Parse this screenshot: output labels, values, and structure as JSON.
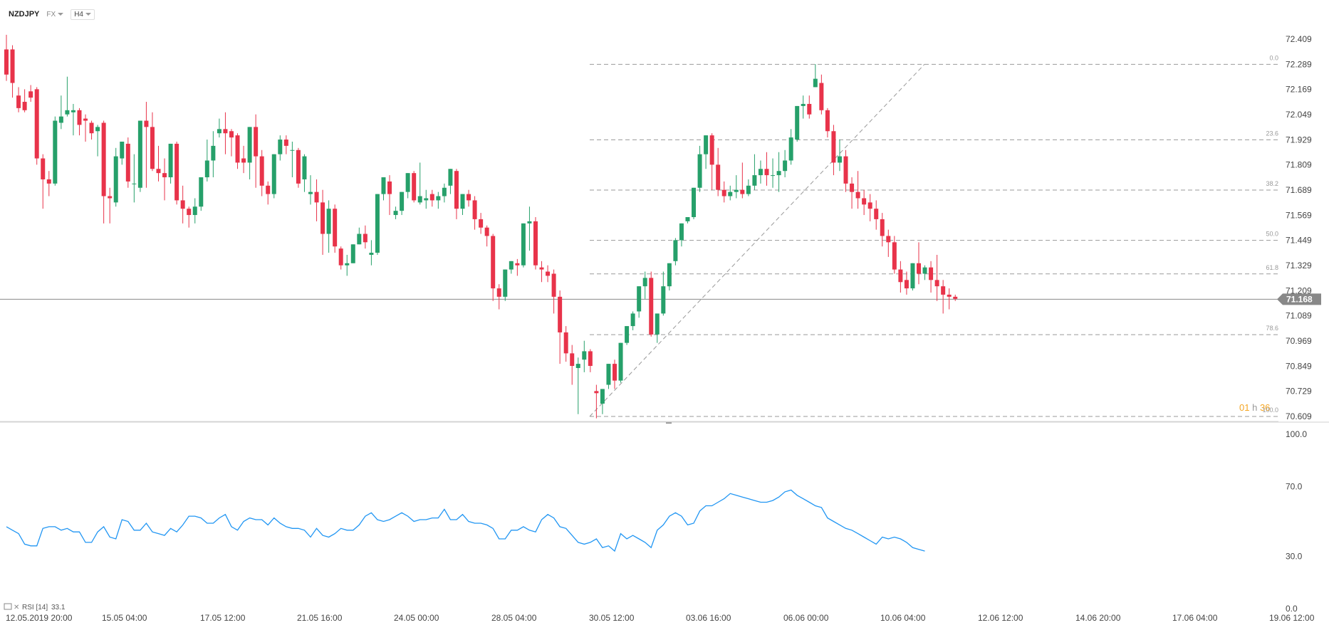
{
  "header": {
    "symbol": "NZDJPY",
    "market": "FX",
    "interval": "H4"
  },
  "price_axis": {
    "ticks": [
      "72.409",
      "72.289",
      "72.169",
      "72.049",
      "71.929",
      "71.809",
      "71.689",
      "71.569",
      "71.449",
      "71.329",
      "71.209",
      "71.089",
      "70.969",
      "70.849",
      "70.729",
      "70.609"
    ]
  },
  "current_price": {
    "label": "71.168",
    "value": 71.168
  },
  "countdown": {
    "hours": "01",
    "h": "h",
    "minutes": "36"
  },
  "fib": {
    "levels": [
      {
        "label": "0.0",
        "price": 72.289
      },
      {
        "label": "23.6",
        "price": 71.929
      },
      {
        "label": "38.2",
        "price": 71.689
      },
      {
        "label": "50.0",
        "price": 71.449
      },
      {
        "label": "61.8",
        "price": 71.289
      },
      {
        "label": "78.6",
        "price": 70.999
      },
      {
        "label": "100.0",
        "price": 70.609
      }
    ]
  },
  "rsi_panel": {
    "label": "RSI [14]",
    "value": "33.1",
    "axis_ticks": [
      "100.0",
      "70.0",
      "30.0",
      "0.0"
    ]
  },
  "time_axis": {
    "labels": [
      "12.05.2019  20:00",
      "15.05  04:00",
      "17.05  12:00",
      "21.05  16:00",
      "24.05  00:00",
      "28.05  04:00",
      "30.05  12:00",
      "03.06  16:00",
      "06.06  00:00",
      "10.06  04:00",
      "12.06  12:00",
      "14.06  20:00",
      "17.06  04:00",
      "19.06  12:00"
    ]
  },
  "colors": {
    "up": "#26a06a",
    "down": "#e8334a",
    "rsi": "#2196f3",
    "grid_dash": "#999999",
    "price_tag": "#888888",
    "countdown": "#f5a623"
  },
  "chart_data": {
    "type": "candlestick",
    "title": "NZDJPY",
    "interval": "H4",
    "ylim": [
      70.609,
      72.409
    ],
    "candles": [
      [
        72.36,
        72.43,
        72.24,
        72.21
      ],
      [
        72.36,
        72.38,
        72.2,
        72.13
      ],
      [
        72.14,
        72.18,
        72.08,
        72.06
      ],
      [
        72.11,
        72.17,
        72.07,
        72.06
      ],
      [
        72.16,
        72.19,
        72.13,
        72.11
      ],
      [
        72.17,
        72.18,
        71.84,
        71.81
      ],
      [
        71.84,
        71.86,
        71.74,
        71.6
      ],
      [
        71.74,
        71.78,
        71.72,
        71.66
      ],
      [
        71.72,
        72.04,
        72.02,
        71.71
      ],
      [
        72.01,
        72.14,
        72.04,
        71.98
      ],
      [
        72.05,
        72.23,
        72.07,
        72.04
      ],
      [
        72.06,
        72.1,
        72.07,
        71.95
      ],
      [
        72.07,
        72.08,
        72.0,
        71.95
      ],
      [
        72.03,
        72.05,
        72.02,
        71.92
      ],
      [
        72.01,
        72.02,
        71.96,
        71.93
      ],
      [
        71.97,
        72.0,
        71.99,
        71.85
      ],
      [
        72.01,
        72.02,
        71.66,
        71.53
      ],
      [
        71.66,
        71.7,
        71.65,
        71.53
      ],
      [
        71.63,
        71.89,
        71.85,
        71.61
      ],
      [
        71.84,
        71.92,
        71.92,
        71.81
      ],
      [
        71.91,
        71.94,
        71.73,
        71.7
      ],
      [
        71.72,
        71.86,
        71.72,
        71.63
      ],
      [
        71.7,
        71.91,
        72.02,
        71.68
      ],
      [
        72.02,
        72.11,
        71.99,
        71.7
      ],
      [
        71.99,
        72.06,
        71.79,
        71.78
      ],
      [
        71.79,
        71.9,
        71.77,
        71.73
      ],
      [
        71.77,
        71.84,
        71.75,
        71.64
      ],
      [
        71.75,
        71.87,
        71.91,
        71.72
      ],
      [
        71.91,
        71.92,
        71.64,
        71.62
      ],
      [
        71.64,
        71.71,
        71.6,
        71.53
      ],
      [
        71.6,
        71.61,
        71.57,
        71.51
      ],
      [
        71.57,
        71.65,
        71.61,
        71.53
      ],
      [
        71.61,
        71.75,
        71.75,
        71.59
      ],
      [
        71.75,
        71.93,
        71.83,
        71.73
      ],
      [
        71.83,
        71.97,
        71.9,
        71.75
      ],
      [
        71.96,
        72.03,
        71.98,
        71.94
      ],
      [
        71.98,
        72.06,
        71.96,
        71.86
      ],
      [
        71.97,
        71.98,
        71.94,
        71.85
      ],
      [
        71.95,
        71.96,
        71.82,
        71.79
      ],
      [
        71.84,
        71.9,
        71.82,
        71.77
      ],
      [
        71.82,
        71.99,
        71.99,
        71.74
      ],
      [
        71.99,
        72.05,
        71.85,
        71.7
      ],
      [
        71.85,
        71.88,
        71.71,
        71.66
      ],
      [
        71.71,
        71.73,
        71.67,
        71.62
      ],
      [
        71.67,
        71.81,
        71.86,
        71.65
      ],
      [
        71.86,
        71.95,
        71.93,
        71.83
      ],
      [
        71.93,
        71.95,
        71.9,
        71.86
      ],
      [
        71.88,
        71.92,
        71.88,
        71.75
      ],
      [
        71.88,
        71.89,
        71.72,
        71.7
      ],
      [
        71.74,
        71.86,
        71.85,
        71.68
      ],
      [
        71.67,
        71.76,
        71.68,
        71.62
      ],
      [
        71.68,
        71.74,
        71.63,
        71.54
      ],
      [
        71.63,
        71.69,
        71.48,
        71.38
      ],
      [
        71.48,
        71.64,
        71.6,
        71.39
      ],
      [
        71.6,
        71.62,
        71.42,
        71.39
      ],
      [
        71.41,
        71.42,
        71.33,
        71.31
      ],
      [
        71.33,
        71.38,
        71.34,
        71.28
      ],
      [
        71.34,
        71.43,
        71.43,
        71.34
      ],
      [
        71.43,
        71.51,
        71.48,
        71.44
      ],
      [
        71.48,
        71.52,
        71.44,
        71.41
      ],
      [
        71.38,
        71.45,
        71.39,
        71.33
      ],
      [
        71.39,
        71.67,
        71.67,
        71.38
      ],
      [
        71.67,
        71.72,
        71.75,
        71.64
      ],
      [
        71.73,
        71.76,
        71.67,
        71.57
      ],
      [
        71.57,
        71.61,
        71.59,
        71.55
      ],
      [
        71.59,
        71.68,
        71.68,
        71.57
      ],
      [
        71.68,
        71.72,
        71.77,
        71.65
      ],
      [
        71.77,
        71.78,
        71.64,
        71.63
      ],
      [
        71.63,
        71.82,
        71.66,
        71.62
      ],
      [
        71.64,
        71.69,
        71.65,
        71.6
      ],
      [
        71.67,
        71.69,
        71.64,
        71.61
      ],
      [
        71.64,
        71.68,
        71.66,
        71.6
      ],
      [
        71.66,
        71.72,
        71.7,
        71.63
      ],
      [
        71.71,
        71.76,
        71.79,
        71.67
      ],
      [
        71.78,
        71.79,
        71.6,
        71.55
      ],
      [
        71.6,
        71.66,
        71.67,
        71.57
      ],
      [
        71.67,
        71.69,
        71.64,
        71.61
      ],
      [
        71.64,
        71.66,
        71.55,
        71.5
      ],
      [
        71.55,
        71.58,
        71.51,
        71.48
      ],
      [
        71.51,
        71.52,
        71.47,
        71.42
      ],
      [
        71.47,
        71.48,
        71.22,
        71.16
      ],
      [
        71.22,
        71.24,
        71.18,
        71.12
      ],
      [
        71.18,
        71.22,
        71.31,
        71.16
      ],
      [
        71.31,
        71.35,
        71.35,
        71.29
      ],
      [
        71.34,
        71.36,
        71.33,
        71.28
      ],
      [
        71.33,
        71.36,
        71.53,
        71.32
      ],
      [
        71.53,
        71.61,
        71.54,
        71.4
      ],
      [
        71.54,
        71.56,
        71.33,
        71.31
      ],
      [
        71.32,
        71.35,
        71.31,
        71.25
      ],
      [
        71.3,
        71.33,
        71.28,
        71.25
      ],
      [
        71.29,
        71.31,
        71.18,
        71.1
      ],
      [
        71.18,
        71.21,
        71.01,
        70.86
      ],
      [
        71.01,
        71.04,
        70.91,
        70.87
      ],
      [
        70.91,
        70.95,
        70.85,
        70.76
      ],
      [
        70.84,
        70.89,
        70.86,
        70.62
      ],
      [
        70.88,
        70.97,
        70.92,
        70.82
      ],
      [
        70.92,
        70.93,
        70.85,
        70.82
      ],
      [
        70.73,
        70.76,
        70.72,
        70.6
      ],
      [
        70.67,
        70.72,
        70.74,
        70.62
      ],
      [
        70.76,
        70.86,
        70.86,
        70.74
      ],
      [
        70.86,
        70.88,
        70.78,
        70.74
      ],
      [
        70.78,
        70.86,
        70.96,
        70.77
      ],
      [
        70.96,
        71.04,
        71.04,
        70.95
      ],
      [
        71.04,
        71.11,
        71.1,
        71.02
      ],
      [
        71.11,
        71.23,
        71.23,
        71.08
      ],
      [
        71.23,
        71.3,
        71.27,
        71.17
      ],
      [
        71.27,
        71.3,
        71.0,
        70.99
      ],
      [
        71.0,
        71.1,
        71.1,
        70.96
      ],
      [
        71.1,
        71.3,
        71.23,
        71.09
      ],
      [
        71.23,
        71.34,
        71.34,
        71.21
      ],
      [
        71.35,
        71.46,
        71.45,
        71.33
      ],
      [
        71.45,
        71.52,
        71.53,
        71.42
      ],
      [
        71.54,
        71.55,
        71.56,
        71.53
      ],
      [
        71.56,
        71.65,
        71.7,
        71.55
      ],
      [
        71.7,
        71.9,
        71.86,
        71.68
      ],
      [
        71.86,
        71.95,
        71.95,
        71.79
      ],
      [
        71.95,
        71.96,
        71.81,
        71.69
      ],
      [
        71.81,
        71.89,
        71.69,
        71.66
      ],
      [
        71.69,
        71.73,
        71.66,
        71.63
      ],
      [
        71.66,
        71.71,
        71.68,
        71.64
      ],
      [
        71.68,
        71.76,
        71.69,
        71.65
      ],
      [
        71.69,
        71.82,
        71.67,
        71.65
      ],
      [
        71.67,
        71.74,
        71.71,
        71.66
      ],
      [
        71.71,
        71.86,
        71.76,
        71.69
      ],
      [
        71.76,
        71.83,
        71.79,
        71.72
      ],
      [
        71.79,
        71.87,
        71.76,
        71.71
      ],
      [
        71.76,
        71.84,
        71.76,
        71.7
      ],
      [
        71.76,
        71.87,
        71.78,
        71.68
      ],
      [
        71.78,
        71.88,
        71.83,
        71.75
      ],
      [
        71.83,
        71.98,
        71.94,
        71.81
      ],
      [
        71.93,
        72.0,
        72.09,
        71.92
      ],
      [
        72.09,
        72.14,
        72.1,
        72.03
      ],
      [
        72.1,
        72.14,
        72.05,
        72.03
      ],
      [
        72.18,
        72.29,
        72.22,
        72.18
      ],
      [
        72.2,
        72.24,
        72.07,
        72.05
      ],
      [
        72.07,
        72.08,
        71.97,
        71.94
      ],
      [
        71.97,
        72.0,
        71.82,
        71.76
      ],
      [
        71.82,
        71.93,
        71.85,
        71.78
      ],
      [
        71.85,
        71.88,
        71.72,
        71.68
      ],
      [
        71.72,
        71.75,
        71.68,
        71.6
      ],
      [
        71.68,
        71.78,
        71.65,
        71.6
      ],
      [
        71.65,
        71.69,
        71.62,
        71.57
      ],
      [
        71.63,
        71.67,
        71.6,
        71.54
      ],
      [
        71.6,
        71.64,
        71.55,
        71.5
      ],
      [
        71.55,
        71.58,
        71.47,
        71.42
      ],
      [
        71.47,
        71.5,
        71.44,
        71.37
      ],
      [
        71.44,
        71.47,
        71.31,
        71.29
      ],
      [
        71.31,
        71.35,
        71.25,
        71.2
      ],
      [
        71.26,
        71.3,
        71.22,
        71.19
      ],
      [
        71.22,
        71.33,
        71.34,
        71.21
      ],
      [
        71.34,
        71.44,
        71.29,
        71.24
      ],
      [
        71.29,
        71.33,
        71.32,
        71.26
      ],
      [
        71.32,
        71.35,
        71.26,
        71.2
      ],
      [
        71.26,
        71.38,
        71.23,
        71.16
      ],
      [
        71.23,
        71.26,
        71.19,
        71.1
      ],
      [
        71.19,
        71.22,
        71.18,
        71.12
      ],
      [
        71.18,
        71.19,
        71.17,
        71.16
      ]
    ],
    "rsi": [
      47,
      45,
      43,
      37,
      36,
      36,
      46,
      47,
      47,
      45,
      46,
      44,
      44,
      38,
      38,
      44,
      47,
      41,
      40,
      51,
      50,
      45,
      45,
      49,
      44,
      43,
      42,
      46,
      44,
      48,
      53,
      53,
      52,
      49,
      49,
      52,
      54,
      47,
      45,
      50,
      52,
      51,
      51,
      48,
      52,
      49,
      47,
      46,
      46,
      45,
      41,
      46,
      42,
      41,
      43,
      46,
      45,
      45,
      48,
      53,
      55,
      51,
      50,
      51,
      53,
      55,
      53,
      50,
      51,
      51,
      52,
      52,
      57,
      51,
      51,
      54,
      50,
      49,
      49,
      48,
      46,
      40,
      40,
      45,
      45,
      47,
      45,
      44,
      51,
      54,
      52,
      47,
      46,
      42,
      38,
      37,
      38,
      40,
      35,
      36,
      33,
      43,
      40,
      42,
      40,
      38,
      35,
      45,
      48,
      53,
      55,
      53,
      48,
      49,
      56,
      59,
      59,
      61,
      63,
      66,
      65,
      64,
      63,
      62,
      61,
      61,
      62,
      64,
      67,
      68,
      65,
      63,
      61,
      59,
      58,
      52,
      50,
      48,
      46,
      45,
      43,
      41,
      39,
      37,
      41,
      40,
      41,
      40,
      38,
      35,
      34,
      33
    ],
    "rsi_ylim": [
      0,
      100
    ]
  }
}
